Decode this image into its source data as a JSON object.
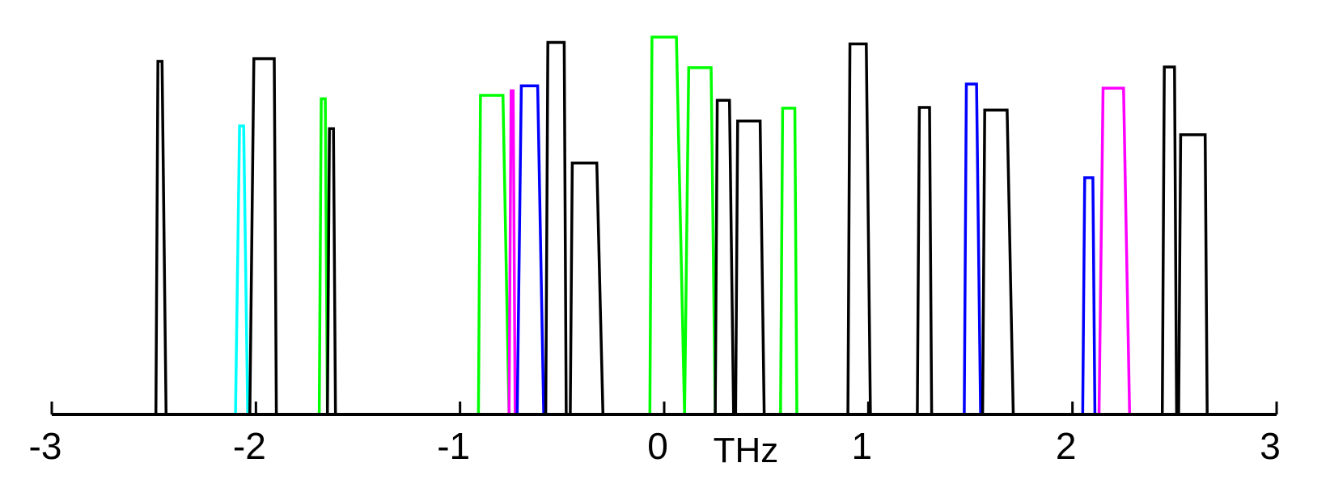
{
  "chart_data": {
    "type": "bar",
    "xlabel": "THz",
    "ylabel": "",
    "title": "",
    "xlim": [
      -3,
      3
    ],
    "ylim": [
      0,
      1
    ],
    "grid": false,
    "legend": "none",
    "x_ticks": [
      -3,
      -2,
      -1,
      0,
      1,
      2,
      3
    ],
    "x_tick_labels": [
      "-3",
      "-2",
      "-1",
      "0",
      "1",
      "2",
      "3"
    ],
    "colors": {
      "black": "#000000",
      "green": "#00ff00",
      "blue": "#0000ff",
      "cyan": "#00ffff",
      "magenta": "#ff00ff"
    },
    "peaks": [
      {
        "color": "black",
        "x0": -2.49,
        "x1": -2.44,
        "t0": -2.48,
        "t1": -2.46,
        "h": 0.934
      },
      {
        "color": "cyan",
        "x0": -2.1,
        "x1": -2.04,
        "t0": -2.08,
        "t1": -2.06,
        "h": 0.763
      },
      {
        "color": "black",
        "x0": -2.03,
        "x1": -1.9,
        "t0": -2.01,
        "t1": -1.91,
        "h": 0.941
      },
      {
        "color": "green",
        "x0": -1.69,
        "x1": -1.65,
        "t0": -1.68,
        "t1": -1.66,
        "h": 0.835
      },
      {
        "color": "black",
        "x0": -1.65,
        "x1": -1.61,
        "t0": -1.64,
        "t1": -1.62,
        "h": 0.756
      },
      {
        "color": "green",
        "x0": -0.91,
        "x1": -0.76,
        "t0": -0.9,
        "t1": -0.79,
        "h": 0.844
      },
      {
        "color": "magenta",
        "x0": -0.76,
        "x1": -0.73,
        "t0": -0.75,
        "t1": -0.74,
        "h": 0.856
      },
      {
        "color": "blue",
        "x0": -0.72,
        "x1": -0.59,
        "t0": -0.7,
        "t1": -0.62,
        "h": 0.869
      },
      {
        "color": "black",
        "x0": -0.58,
        "x1": -0.48,
        "t0": -0.57,
        "t1": -0.49,
        "h": 0.984
      },
      {
        "color": "black",
        "x0": -0.46,
        "x1": -0.3,
        "t0": -0.45,
        "t1": -0.33,
        "h": 0.665
      },
      {
        "color": "green",
        "x0": -0.07,
        "x1": 0.1,
        "t0": -0.06,
        "t1": 0.06,
        "h": 0.998
      },
      {
        "color": "green",
        "x0": 0.1,
        "x1": 0.25,
        "t0": 0.12,
        "t1": 0.23,
        "h": 0.917
      },
      {
        "color": "black",
        "x0": 0.25,
        "x1": 0.34,
        "t0": 0.26,
        "t1": 0.32,
        "h": 0.831
      },
      {
        "color": "black",
        "x0": 0.35,
        "x1": 0.49,
        "t0": 0.36,
        "t1": 0.47,
        "h": 0.776
      },
      {
        "color": "green",
        "x0": 0.57,
        "x1": 0.65,
        "t0": 0.58,
        "t1": 0.64,
        "h": 0.81
      },
      {
        "color": "black",
        "x0": 0.9,
        "x1": 1.01,
        "t0": 0.91,
        "t1": 0.99,
        "h": 0.98
      },
      {
        "color": "black",
        "x0": 1.24,
        "x1": 1.31,
        "t0": 1.25,
        "t1": 1.3,
        "h": 0.812
      },
      {
        "color": "blue",
        "x0": 1.47,
        "x1": 1.55,
        "t0": 1.48,
        "t1": 1.53,
        "h": 0.874
      },
      {
        "color": "black",
        "x0": 1.56,
        "x1": 1.71,
        "t0": 1.57,
        "t1": 1.68,
        "h": 0.805
      },
      {
        "color": "blue",
        "x0": 2.05,
        "x1": 2.11,
        "t0": 2.06,
        "t1": 2.1,
        "h": 0.626
      },
      {
        "color": "magenta",
        "x0": 2.13,
        "x1": 2.28,
        "t0": 2.15,
        "t1": 2.25,
        "h": 0.863
      },
      {
        "color": "black",
        "x0": 2.44,
        "x1": 2.51,
        "t0": 2.45,
        "t1": 2.5,
        "h": 0.919
      },
      {
        "color": "black",
        "x0": 2.52,
        "x1": 2.66,
        "t0": 2.53,
        "t1": 2.65,
        "h": 0.74
      }
    ]
  }
}
